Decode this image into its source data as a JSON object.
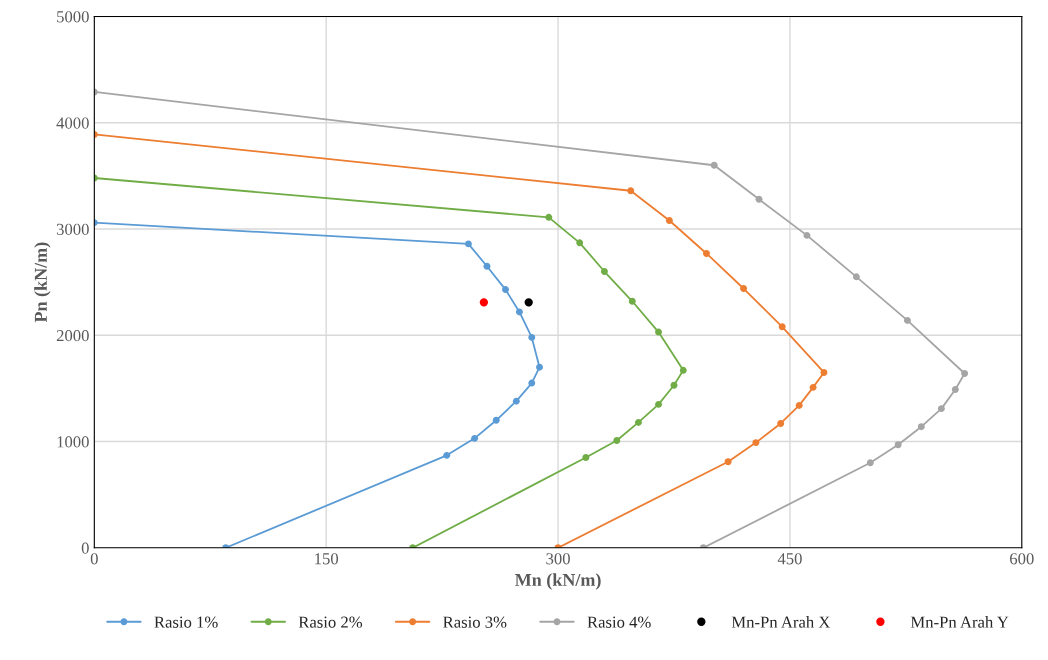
{
  "chart_data": {
    "type": "line",
    "xlabel": "Mn (kN/m)",
    "ylabel": "Pn (kN/m)",
    "xlim": [
      0,
      600
    ],
    "ylim": [
      0,
      5000
    ],
    "xticks": [
      0,
      150,
      300,
      450,
      600
    ],
    "yticks": [
      0,
      1000,
      2000,
      3000,
      4000,
      5000
    ],
    "grid": true,
    "legend": "bottom",
    "marker": "circle",
    "line_style": "solid",
    "series": [
      {
        "name": "Rasio 1%",
        "color": "#5b9bd5",
        "x": [
          0,
          242,
          254,
          266,
          275,
          283,
          288,
          283,
          273,
          260,
          246,
          228,
          85
        ],
        "values": [
          3060,
          2860,
          2650,
          2430,
          2220,
          1980,
          1700,
          1550,
          1380,
          1200,
          1030,
          870,
          0
        ]
      },
      {
        "name": "Rasio 2%",
        "color": "#70ad47",
        "x": [
          0,
          294,
          314,
          330,
          348,
          365,
          381,
          375,
          365,
          352,
          338,
          318,
          206
        ],
        "values": [
          3480,
          3110,
          2870,
          2600,
          2320,
          2030,
          1670,
          1530,
          1350,
          1180,
          1010,
          850,
          0
        ]
      },
      {
        "name": "Rasio 3%",
        "color": "#ed7d31",
        "x": [
          0,
          347,
          372,
          396,
          420,
          445,
          472,
          465,
          456,
          444,
          428,
          410,
          300
        ],
        "values": [
          3890,
          3360,
          3080,
          2770,
          2440,
          2080,
          1650,
          1510,
          1340,
          1170,
          990,
          810,
          0
        ]
      },
      {
        "name": "Rasio 4%",
        "color": "#a5a5a5",
        "x": [
          0,
          401,
          430,
          461,
          493,
          526,
          563,
          557,
          548,
          535,
          520,
          502,
          394
        ],
        "values": [
          4290,
          3600,
          3280,
          2940,
          2550,
          2140,
          1640,
          1490,
          1310,
          1140,
          970,
          800,
          0
        ]
      },
      {
        "name": "Mn-Pn Arah X",
        "type": "scatter",
        "color": "#000000",
        "x": [
          281
        ],
        "values": [
          2310
        ]
      },
      {
        "name": "Mn-Pn Arah Y",
        "type": "scatter",
        "color": "#ff0000",
        "x": [
          252
        ],
        "values": [
          2310
        ]
      }
    ]
  }
}
